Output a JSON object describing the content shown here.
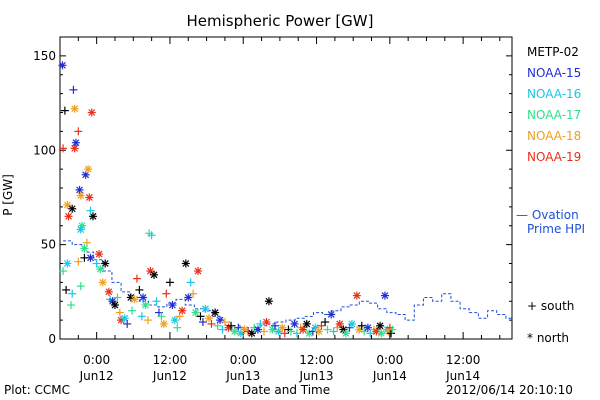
{
  "chart_data": {
    "type": "scatter",
    "title": "Hemispheric Power [GW]",
    "ylabel": "P [GW]",
    "xlabel": "Date and Time",
    "ylim": [
      0,
      160
    ],
    "yticks": [
      0,
      50,
      100,
      150
    ],
    "xlim_hours": [
      -6,
      68
    ],
    "xticks": [
      {
        "hour": 0,
        "time": "0:00",
        "date": "Jun12"
      },
      {
        "hour": 12,
        "time": "12:00",
        "date": "Jun12"
      },
      {
        "hour": 24,
        "time": "0:00",
        "date": "Jun13"
      },
      {
        "hour": 36,
        "time": "12:00",
        "date": "Jun13"
      },
      {
        "hour": 48,
        "time": "0:00",
        "date": "Jun14"
      },
      {
        "hour": 60,
        "time": "12:00",
        "date": "Jun14"
      }
    ],
    "legend": {
      "placement": "right",
      "series": [
        {
          "name": "METP-02",
          "color": "#000000"
        },
        {
          "name": "NOAA-15",
          "color": "#1f2fd8"
        },
        {
          "name": "NOAA-16",
          "color": "#19c8e6"
        },
        {
          "name": "NOAA-17",
          "color": "#2fe08c"
        },
        {
          "name": "NOAA-18",
          "color": "#f0a020"
        },
        {
          "name": "NOAA-19",
          "color": "#e8301c"
        }
      ],
      "ovation": {
        "line1": "— Ovation",
        "line2": "Prime HPI",
        "color": "#1f4fd8"
      },
      "south": "+ south",
      "north": "* north"
    },
    "ovation_series": [
      [
        -5.5,
        52
      ],
      [
        -4,
        50
      ],
      [
        -2,
        46
      ],
      [
        -0.5,
        42
      ],
      [
        1,
        36
      ],
      [
        2.5,
        30
      ],
      [
        4,
        25
      ],
      [
        5.5,
        22
      ],
      [
        7,
        20
      ],
      [
        8.5,
        18
      ],
      [
        10,
        17
      ],
      [
        11.5,
        19
      ],
      [
        13,
        21
      ],
      [
        14.5,
        18
      ],
      [
        16,
        16
      ],
      [
        17.5,
        15
      ],
      [
        19,
        12
      ],
      [
        20.5,
        9
      ],
      [
        22,
        7
      ],
      [
        23.5,
        6
      ],
      [
        25,
        6
      ],
      [
        26.5,
        7
      ],
      [
        28,
        8
      ],
      [
        29.5,
        9
      ],
      [
        31,
        10
      ],
      [
        32.5,
        11
      ],
      [
        34,
        12
      ],
      [
        35.5,
        14
      ],
      [
        37,
        13
      ],
      [
        38.5,
        15
      ],
      [
        40,
        17
      ],
      [
        41.5,
        18
      ],
      [
        43,
        20
      ],
      [
        44.5,
        19
      ],
      [
        46,
        16
      ],
      [
        47.5,
        14
      ],
      [
        49,
        13
      ],
      [
        50.5,
        10
      ],
      [
        52,
        18
      ],
      [
        53.5,
        22
      ],
      [
        55,
        20
      ],
      [
        56.5,
        24
      ],
      [
        58,
        20
      ],
      [
        59.5,
        16
      ],
      [
        61,
        14
      ],
      [
        62.5,
        11
      ],
      [
        64,
        15
      ],
      [
        65.5,
        13
      ],
      [
        67,
        11
      ],
      [
        68,
        10
      ]
    ],
    "points": [
      {
        "s": "NOAA-15",
        "m": "*",
        "x": -5.6,
        "y": 145
      },
      {
        "s": "NOAA-19",
        "m": "+",
        "x": -5.5,
        "y": 101
      },
      {
        "s": "METP-02",
        "m": "+",
        "x": -5.2,
        "y": 121
      },
      {
        "s": "NOAA-17",
        "m": "+",
        "x": -5.5,
        "y": 36
      },
      {
        "s": "METP-02",
        "m": "+",
        "x": -5.0,
        "y": 26
      },
      {
        "s": "NOAA-16",
        "m": "*",
        "x": -4.8,
        "y": 40
      },
      {
        "s": "NOAA-18",
        "m": "*",
        "x": -4.8,
        "y": 71
      },
      {
        "s": "NOAA-19",
        "m": "*",
        "x": -4.6,
        "y": 65
      },
      {
        "s": "METP-02",
        "m": "*",
        "x": -4.0,
        "y": 69
      },
      {
        "s": "NOAA-17",
        "m": "+",
        "x": -4.2,
        "y": 18
      },
      {
        "s": "NOAA-16",
        "m": "+",
        "x": -4.0,
        "y": 24
      },
      {
        "s": "NOAA-15",
        "m": "+",
        "x": -3.8,
        "y": 132
      },
      {
        "s": "NOAA-18",
        "m": "*",
        "x": -3.6,
        "y": 122
      },
      {
        "s": "NOAA-19",
        "m": "*",
        "x": -3.6,
        "y": 101
      },
      {
        "s": "NOAA-15",
        "m": "*",
        "x": -3.4,
        "y": 104
      },
      {
        "s": "NOAA-19",
        "m": "+",
        "x": -3.0,
        "y": 110
      },
      {
        "s": "NOAA-15",
        "m": "*",
        "x": -2.8,
        "y": 79
      },
      {
        "s": "NOAA-18",
        "m": "*",
        "x": -2.6,
        "y": 76
      },
      {
        "s": "NOAA-17",
        "m": "*",
        "x": -2.4,
        "y": 60
      },
      {
        "s": "NOAA-16",
        "m": "*",
        "x": -2.6,
        "y": 58
      },
      {
        "s": "NOAA-18",
        "m": "+",
        "x": -3.0,
        "y": 41
      },
      {
        "s": "NOAA-17",
        "m": "+",
        "x": -2.6,
        "y": 28
      },
      {
        "s": "NOAA-15",
        "m": "*",
        "x": -1.8,
        "y": 87
      },
      {
        "s": "NOAA-18",
        "m": "*",
        "x": -1.4,
        "y": 90
      },
      {
        "s": "NOAA-19",
        "m": "*",
        "x": -0.8,
        "y": 120
      },
      {
        "s": "METP-02",
        "m": "*",
        "x": -0.6,
        "y": 65
      },
      {
        "s": "NOAA-16",
        "m": "+",
        "x": -1.0,
        "y": 68
      },
      {
        "s": "NOAA-19",
        "m": "*",
        "x": -1.2,
        "y": 75
      },
      {
        "s": "NOAA-15",
        "m": "*",
        "x": -1.0,
        "y": 43
      },
      {
        "s": "NOAA-18",
        "m": "+",
        "x": -1.6,
        "y": 51
      },
      {
        "s": "NOAA-17",
        "m": "*",
        "x": -2.0,
        "y": 48
      },
      {
        "s": "METP-02",
        "m": "+",
        "x": -2.0,
        "y": 43
      },
      {
        "s": "NOAA-19",
        "m": "*",
        "x": 0.4,
        "y": 45
      },
      {
        "s": "NOAA-16",
        "m": "+",
        "x": 0.0,
        "y": 40
      },
      {
        "s": "METP-02",
        "m": "*",
        "x": 1.4,
        "y": 40
      },
      {
        "s": "NOAA-17",
        "m": "*",
        "x": 0.6,
        "y": 37
      },
      {
        "s": "NOAA-18",
        "m": "*",
        "x": 1.0,
        "y": 30
      },
      {
        "s": "NOAA-19",
        "m": "*",
        "x": 2.0,
        "y": 25
      },
      {
        "s": "NOAA-16",
        "m": "+",
        "x": 2.2,
        "y": 21
      },
      {
        "s": "NOAA-15",
        "m": "*",
        "x": 2.6,
        "y": 20
      },
      {
        "s": "METP-02",
        "m": "*",
        "x": 3.0,
        "y": 18
      },
      {
        "s": "NOAA-17",
        "m": "+",
        "x": 3.4,
        "y": 22
      },
      {
        "s": "NOAA-18",
        "m": "+",
        "x": 3.8,
        "y": 14
      },
      {
        "s": "NOAA-19",
        "m": "*",
        "x": 4.0,
        "y": 10
      },
      {
        "s": "NOAA-16",
        "m": "*",
        "x": 4.6,
        "y": 11
      },
      {
        "s": "NOAA-15",
        "m": "+",
        "x": 5.0,
        "y": 8
      },
      {
        "s": "METP-02",
        "m": "*",
        "x": 5.6,
        "y": 22
      },
      {
        "s": "NOAA-17",
        "m": "+",
        "x": 5.8,
        "y": 15
      },
      {
        "s": "NOAA-18",
        "m": "*",
        "x": 6.2,
        "y": 21
      },
      {
        "s": "NOAA-19",
        "m": "+",
        "x": 6.6,
        "y": 32
      },
      {
        "s": "METP-02",
        "m": "+",
        "x": 7.0,
        "y": 26
      },
      {
        "s": "NOAA-16",
        "m": "+",
        "x": 7.4,
        "y": 12
      },
      {
        "s": "NOAA-15",
        "m": "*",
        "x": 7.6,
        "y": 22
      },
      {
        "s": "NOAA-17",
        "m": "*",
        "x": 8.0,
        "y": 18
      },
      {
        "s": "NOAA-18",
        "m": "+",
        "x": 8.4,
        "y": 10
      },
      {
        "s": "NOAA-19",
        "m": "*",
        "x": 8.8,
        "y": 36
      },
      {
        "s": "METP-02",
        "m": "*",
        "x": 9.4,
        "y": 34
      },
      {
        "s": "NOAA-16",
        "m": "+",
        "x": 9.8,
        "y": 20
      },
      {
        "s": "NOAA-15",
        "m": "+",
        "x": 10.2,
        "y": 14
      },
      {
        "s": "NOAA-17",
        "m": "+",
        "x": 10.6,
        "y": 12
      },
      {
        "s": "NOAA-18",
        "m": "*",
        "x": 11.0,
        "y": 8
      },
      {
        "s": "NOAA-17",
        "m": "+",
        "x": 8.6,
        "y": 56
      },
      {
        "s": "NOAA-16",
        "m": "+",
        "x": 9.0,
        "y": 55
      },
      {
        "s": "NOAA-19",
        "m": "+",
        "x": 11.4,
        "y": 24
      },
      {
        "s": "METP-02",
        "m": "+",
        "x": 12.0,
        "y": 30
      },
      {
        "s": "NOAA-15",
        "m": "*",
        "x": 12.4,
        "y": 18
      },
      {
        "s": "NOAA-16",
        "m": "*",
        "x": 12.8,
        "y": 10
      },
      {
        "s": "NOAA-17",
        "m": "+",
        "x": 13.2,
        "y": 6
      },
      {
        "s": "NOAA-18",
        "m": "+",
        "x": 13.6,
        "y": 12
      },
      {
        "s": "NOAA-19",
        "m": "*",
        "x": 14.0,
        "y": 15
      },
      {
        "s": "METP-02",
        "m": "*",
        "x": 14.6,
        "y": 40
      },
      {
        "s": "NOAA-15",
        "m": "*",
        "x": 15.0,
        "y": 22
      },
      {
        "s": "NOAA-16",
        "m": "+",
        "x": 15.4,
        "y": 30
      },
      {
        "s": "NOAA-19",
        "m": "*",
        "x": 16.6,
        "y": 36
      },
      {
        "s": "NOAA-18",
        "m": "+",
        "x": 15.8,
        "y": 24
      },
      {
        "s": "NOAA-17",
        "m": "*",
        "x": 16.2,
        "y": 14
      },
      {
        "s": "METP-02",
        "m": "+",
        "x": 17.0,
        "y": 12
      },
      {
        "s": "NOAA-15",
        "m": "+",
        "x": 17.4,
        "y": 9
      },
      {
        "s": "NOAA-16",
        "m": "*",
        "x": 17.8,
        "y": 16
      },
      {
        "s": "NOAA-18",
        "m": "*",
        "x": 18.4,
        "y": 11
      },
      {
        "s": "NOAA-19",
        "m": "+",
        "x": 18.8,
        "y": 8
      },
      {
        "s": "METP-02",
        "m": "*",
        "x": 19.4,
        "y": 14
      },
      {
        "s": "NOAA-17",
        "m": "+",
        "x": 19.8,
        "y": 7
      },
      {
        "s": "NOAA-15",
        "m": "*",
        "x": 20.2,
        "y": 10
      },
      {
        "s": "NOAA-16",
        "m": "+",
        "x": 20.6,
        "y": 5
      },
      {
        "s": "NOAA-18",
        "m": "+",
        "x": 21.0,
        "y": 9
      },
      {
        "s": "NOAA-19",
        "m": "*",
        "x": 21.6,
        "y": 6
      },
      {
        "s": "METP-02",
        "m": "+",
        "x": 22.0,
        "y": 7
      },
      {
        "s": "NOAA-17",
        "m": "*",
        "x": 22.6,
        "y": 4
      },
      {
        "s": "NOAA-15",
        "m": "+",
        "x": 23.2,
        "y": 6
      },
      {
        "s": "NOAA-16",
        "m": "*",
        "x": 23.6,
        "y": 3
      },
      {
        "s": "NOAA-18",
        "m": "*",
        "x": 24.2,
        "y": 5
      },
      {
        "s": "NOAA-19",
        "m": "+",
        "x": 24.8,
        "y": 4
      },
      {
        "s": "METP-02",
        "m": "*",
        "x": 25.4,
        "y": 3
      },
      {
        "s": "NOAA-17",
        "m": "+",
        "x": 25.8,
        "y": 6
      },
      {
        "s": "NOAA-15",
        "m": "*",
        "x": 26.4,
        "y": 5
      },
      {
        "s": "NOAA-16",
        "m": "+",
        "x": 26.8,
        "y": 8
      },
      {
        "s": "NOAA-18",
        "m": "+",
        "x": 27.4,
        "y": 4
      },
      {
        "s": "NOAA-19",
        "m": "*",
        "x": 27.8,
        "y": 9
      },
      {
        "s": "METP-02",
        "m": "*",
        "x": 28.2,
        "y": 20
      },
      {
        "s": "NOAA-17",
        "m": "*",
        "x": 28.8,
        "y": 5
      },
      {
        "s": "NOAA-15",
        "m": "+",
        "x": 29.2,
        "y": 7
      },
      {
        "s": "NOAA-16",
        "m": "*",
        "x": 29.8,
        "y": 4
      },
      {
        "s": "NOAA-18",
        "m": "*",
        "x": 30.4,
        "y": 6
      },
      {
        "s": "NOAA-19",
        "m": "+",
        "x": 30.8,
        "y": 3
      },
      {
        "s": "METP-02",
        "m": "+",
        "x": 31.4,
        "y": 5
      },
      {
        "s": "NOAA-17",
        "m": "+",
        "x": 31.8,
        "y": 4
      },
      {
        "s": "NOAA-15",
        "m": "*",
        "x": 32.4,
        "y": 8
      },
      {
        "s": "NOAA-16",
        "m": "+",
        "x": 32.8,
        "y": 3
      },
      {
        "s": "NOAA-18",
        "m": "+",
        "x": 33.4,
        "y": 6
      },
      {
        "s": "NOAA-19",
        "m": "*",
        "x": 33.8,
        "y": 5
      },
      {
        "s": "METP-02",
        "m": "*",
        "x": 34.4,
        "y": 8
      },
      {
        "s": "NOAA-17",
        "m": "*",
        "x": 34.8,
        "y": 3
      },
      {
        "s": "NOAA-15",
        "m": "+",
        "x": 35.4,
        "y": 4
      },
      {
        "s": "NOAA-16",
        "m": "*",
        "x": 35.8,
        "y": 6
      },
      {
        "s": "NOAA-18",
        "m": "*",
        "x": 36.4,
        "y": 4
      },
      {
        "s": "NOAA-19",
        "m": "+",
        "x": 36.8,
        "y": 7
      },
      {
        "s": "METP-02",
        "m": "+",
        "x": 37.4,
        "y": 9
      },
      {
        "s": "NOAA-17",
        "m": "+",
        "x": 37.8,
        "y": 5
      },
      {
        "s": "NOAA-15",
        "m": "*",
        "x": 38.4,
        "y": 13
      },
      {
        "s": "NOAA-16",
        "m": "+",
        "x": 38.8,
        "y": 4
      },
      {
        "s": "NOAA-18",
        "m": "+",
        "x": 39.4,
        "y": 6
      },
      {
        "s": "NOAA-19",
        "m": "*",
        "x": 39.8,
        "y": 8
      },
      {
        "s": "METP-02",
        "m": "*",
        "x": 40.4,
        "y": 5
      },
      {
        "s": "NOAA-17",
        "m": "*",
        "x": 40.8,
        "y": 3
      },
      {
        "s": "NOAA-15",
        "m": "+",
        "x": 41.4,
        "y": 6
      },
      {
        "s": "NOAA-16",
        "m": "*",
        "x": 41.8,
        "y": 8
      },
      {
        "s": "NOAA-19",
        "m": "*",
        "x": 42.6,
        "y": 23
      },
      {
        "s": "NOAA-18",
        "m": "*",
        "x": 43.0,
        "y": 5
      },
      {
        "s": "METP-02",
        "m": "+",
        "x": 43.4,
        "y": 7
      },
      {
        "s": "NOAA-17",
        "m": "+",
        "x": 43.8,
        "y": 4
      },
      {
        "s": "NOAA-15",
        "m": "*",
        "x": 44.4,
        "y": 6
      },
      {
        "s": "NOAA-16",
        "m": "+",
        "x": 44.8,
        "y": 3
      },
      {
        "s": "NOAA-18",
        "m": "+",
        "x": 45.4,
        "y": 5
      },
      {
        "s": "NOAA-19",
        "m": "*",
        "x": 45.8,
        "y": 4
      },
      {
        "s": "METP-02",
        "m": "*",
        "x": 46.4,
        "y": 7
      },
      {
        "s": "NOAA-17",
        "m": "*",
        "x": 46.6,
        "y": 3
      },
      {
        "s": "NOAA-15",
        "m": "*",
        "x": 47.2,
        "y": 23
      },
      {
        "s": "NOAA-16",
        "m": "*",
        "x": 47.6,
        "y": 5
      },
      {
        "s": "NOAA-18",
        "m": "*",
        "x": 47.8,
        "y": 4
      },
      {
        "s": "NOAA-19",
        "m": "+",
        "x": 48.0,
        "y": 6
      },
      {
        "s": "METP-02",
        "m": "+",
        "x": 48.2,
        "y": 3
      },
      {
        "s": "NOAA-17",
        "m": "+",
        "x": 48.4,
        "y": 5
      }
    ]
  },
  "footer": {
    "left": "Plot: CCMC",
    "right": "2012/06/14 20:10:10"
  }
}
